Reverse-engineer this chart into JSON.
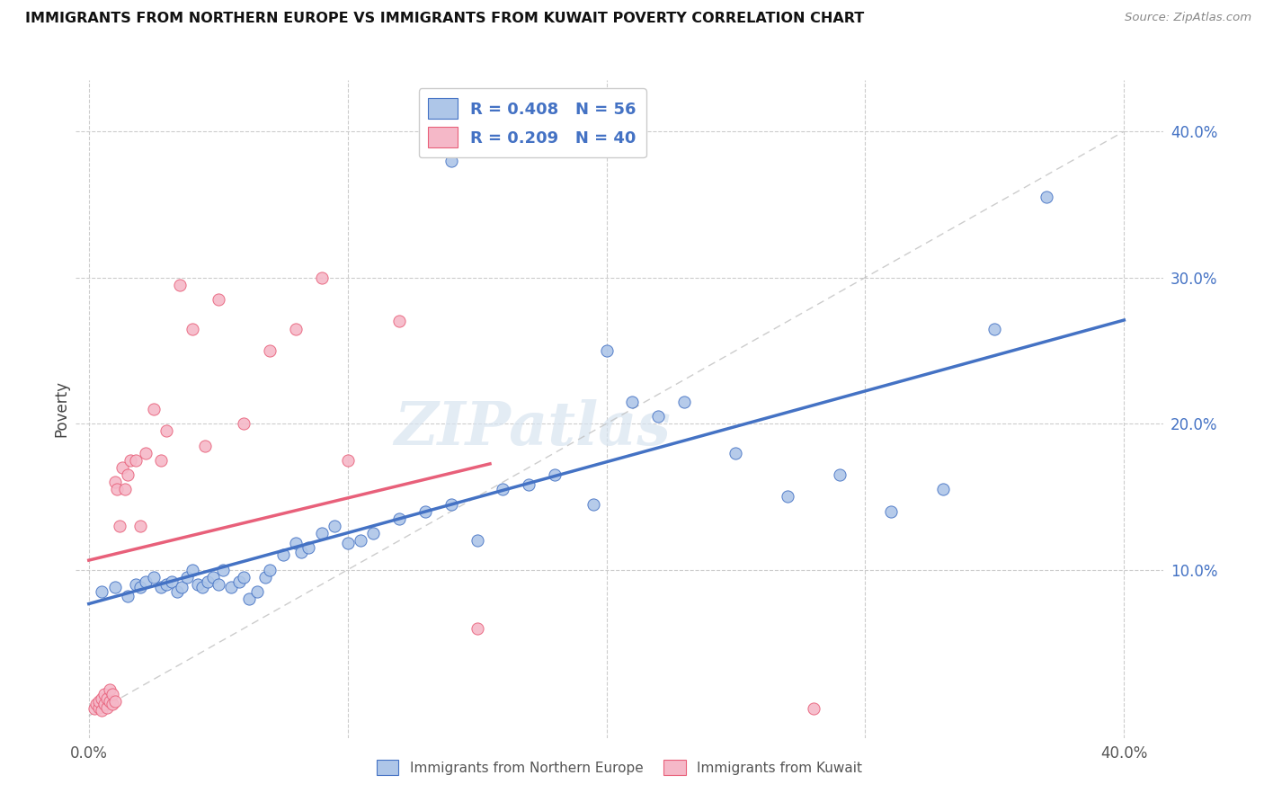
{
  "title": "IMMIGRANTS FROM NORTHERN EUROPE VS IMMIGRANTS FROM KUWAIT POVERTY CORRELATION CHART",
  "source": "Source: ZipAtlas.com",
  "ylabel": "Poverty",
  "x_label_legend1": "Immigrants from Northern Europe",
  "x_label_legend2": "Immigrants from Kuwait",
  "legend_r1": "R = 0.408",
  "legend_n1": "N = 56",
  "legend_r2": "R = 0.209",
  "legend_n2": "N = 40",
  "xlim": [
    -0.005,
    0.415
  ],
  "ylim": [
    -0.015,
    0.435
  ],
  "xtick_positions": [
    0.0,
    0.1,
    0.2,
    0.3,
    0.4
  ],
  "xtick_labels_bottom": [
    "0.0%",
    "",
    "",
    "",
    "40.0%"
  ],
  "ytick_positions": [
    0.1,
    0.2,
    0.3,
    0.4
  ],
  "ytick_labels_right": [
    "10.0%",
    "20.0%",
    "30.0%",
    "40.0%"
  ],
  "color_blue": "#aec6e8",
  "color_pink": "#f5b8c8",
  "line_blue": "#4472c4",
  "line_pink": "#e8607a",
  "line_gray": "#c0c0c0",
  "watermark": "ZIPatlas",
  "blue_scatter_x": [
    0.005,
    0.01,
    0.015,
    0.018,
    0.02,
    0.022,
    0.025,
    0.028,
    0.03,
    0.032,
    0.034,
    0.036,
    0.038,
    0.04,
    0.042,
    0.044,
    0.046,
    0.048,
    0.05,
    0.052,
    0.055,
    0.058,
    0.06,
    0.062,
    0.065,
    0.068,
    0.07,
    0.075,
    0.08,
    0.082,
    0.085,
    0.09,
    0.095,
    0.1,
    0.105,
    0.11,
    0.12,
    0.13,
    0.14,
    0.15,
    0.16,
    0.17,
    0.18,
    0.195,
    0.21,
    0.22,
    0.23,
    0.25,
    0.27,
    0.29,
    0.31,
    0.33,
    0.2,
    0.35,
    0.37,
    0.14
  ],
  "blue_scatter_y": [
    0.085,
    0.088,
    0.082,
    0.09,
    0.088,
    0.092,
    0.095,
    0.088,
    0.09,
    0.092,
    0.085,
    0.088,
    0.095,
    0.1,
    0.09,
    0.088,
    0.092,
    0.095,
    0.09,
    0.1,
    0.088,
    0.092,
    0.095,
    0.08,
    0.085,
    0.095,
    0.1,
    0.11,
    0.118,
    0.112,
    0.115,
    0.125,
    0.13,
    0.118,
    0.12,
    0.125,
    0.135,
    0.14,
    0.145,
    0.12,
    0.155,
    0.158,
    0.165,
    0.145,
    0.215,
    0.205,
    0.215,
    0.18,
    0.15,
    0.165,
    0.14,
    0.155,
    0.25,
    0.265,
    0.355,
    0.38
  ],
  "pink_scatter_x": [
    0.002,
    0.003,
    0.004,
    0.004,
    0.005,
    0.005,
    0.006,
    0.006,
    0.007,
    0.007,
    0.008,
    0.008,
    0.009,
    0.009,
    0.01,
    0.01,
    0.011,
    0.012,
    0.013,
    0.014,
    0.015,
    0.016,
    0.018,
    0.02,
    0.022,
    0.025,
    0.028,
    0.03,
    0.035,
    0.04,
    0.045,
    0.05,
    0.06,
    0.07,
    0.08,
    0.09,
    0.1,
    0.12,
    0.15,
    0.28
  ],
  "pink_scatter_y": [
    0.005,
    0.008,
    0.006,
    0.01,
    0.004,
    0.012,
    0.008,
    0.015,
    0.006,
    0.012,
    0.01,
    0.018,
    0.008,
    0.015,
    0.01,
    0.16,
    0.155,
    0.13,
    0.17,
    0.155,
    0.165,
    0.175,
    0.175,
    0.13,
    0.18,
    0.21,
    0.175,
    0.195,
    0.295,
    0.265,
    0.185,
    0.285,
    0.2,
    0.25,
    0.265,
    0.3,
    0.175,
    0.27,
    0.06,
    0.005
  ]
}
